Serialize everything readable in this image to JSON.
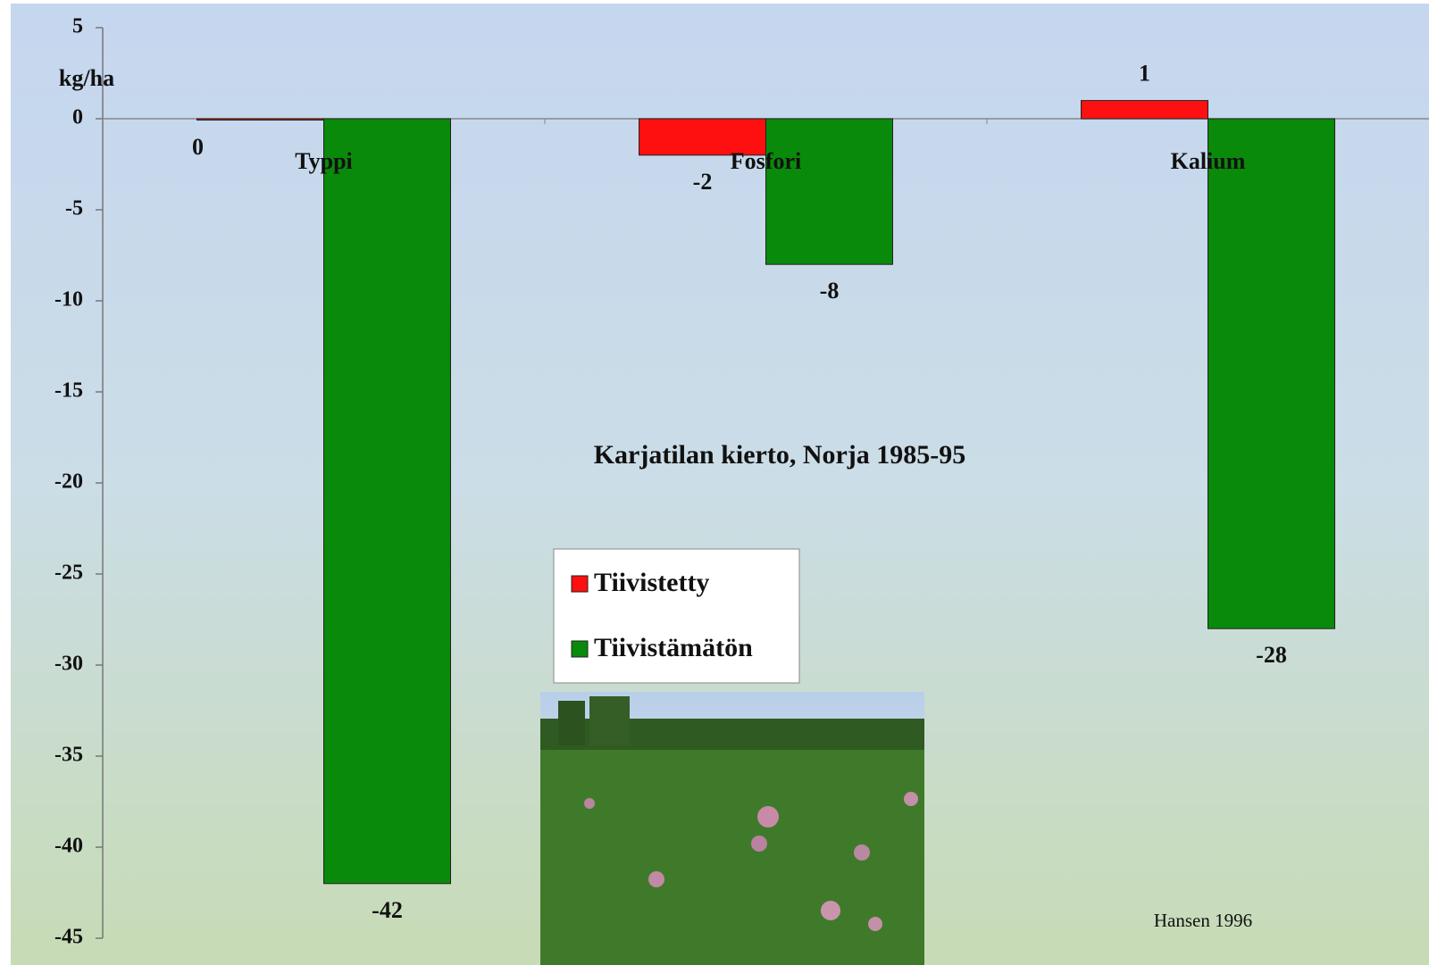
{
  "chart_data": {
    "type": "bar",
    "title": "Karjatilan kierto, Norja 1985-95",
    "y_label": "kg/ha",
    "annotation": "Hansen 1996",
    "categories": [
      "Typpi",
      "Fosfori",
      "Kalium"
    ],
    "series": [
      {
        "name": "Tiivistetty",
        "color": "#ff1010",
        "values": [
          0,
          -2,
          1
        ]
      },
      {
        "name": "Tiivistämätön",
        "color": "#0a8a0a",
        "values": [
          -42,
          -8,
          -28
        ]
      }
    ],
    "ylim": [
      -45,
      5
    ],
    "yticks": [
      5,
      0,
      -5,
      -10,
      -15,
      -20,
      -25,
      -30,
      -35,
      -40,
      -45
    ]
  }
}
